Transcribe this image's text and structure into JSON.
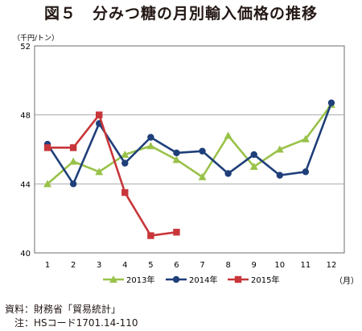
{
  "figure_title": "図５　分みつ糖の月別輸入価格の推移",
  "source_note": "資料：財務省「貿易統計」",
  "hs_note": "　注：HSコード1701.14-110",
  "colors": {
    "s2013": "#99c24a",
    "s2014": "#1f3f7a",
    "s2015": "#c8363a",
    "grid": "#9d9d9d",
    "axis": "#6e6e6e"
  },
  "chart_data": {
    "type": "line",
    "ylabel": "（千円/トン）",
    "xlabel": "（月）",
    "ylim": [
      40,
      52
    ],
    "yticks": [
      40,
      44,
      48,
      52
    ],
    "grid": "horizontal",
    "legend_position": "bottom",
    "categories": [
      "1",
      "2",
      "3",
      "4",
      "5",
      "6",
      "7",
      "8",
      "9",
      "10",
      "11",
      "12"
    ],
    "series": [
      {
        "name": "2013年",
        "marker": "triangle",
        "values": [
          44.0,
          45.3,
          44.7,
          45.7,
          46.2,
          45.4,
          44.4,
          46.8,
          45.0,
          46.0,
          46.6,
          48.6
        ]
      },
      {
        "name": "2014年",
        "marker": "circle",
        "values": [
          46.3,
          44.0,
          47.5,
          45.2,
          46.7,
          45.8,
          45.9,
          44.6,
          45.7,
          44.5,
          44.7,
          48.7
        ]
      },
      {
        "name": "2015年",
        "marker": "square",
        "values": [
          46.1,
          46.1,
          48.0,
          43.5,
          41.0,
          41.2,
          null,
          null,
          null,
          null,
          null,
          null
        ]
      }
    ]
  }
}
